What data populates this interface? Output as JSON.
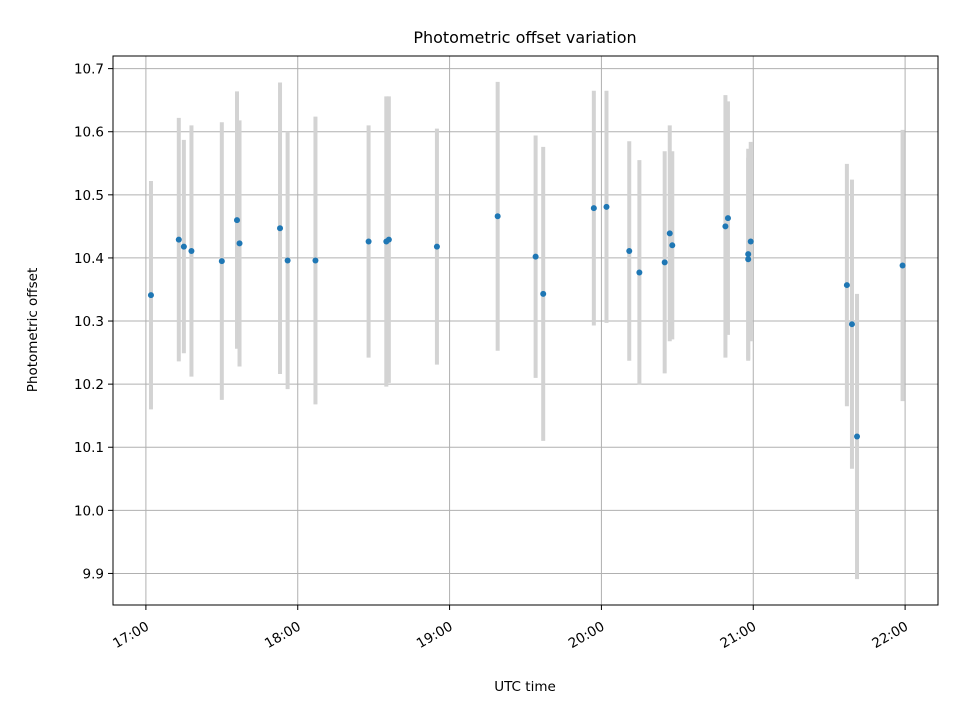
{
  "chart_data": {
    "type": "scatter",
    "title": "Photometric offset variation",
    "xlabel": "UTC time",
    "ylabel": "Photometric offset",
    "x_tick_labels": [
      "17:00",
      "18:00",
      "19:00",
      "20:00",
      "21:00",
      "22:00"
    ],
    "x_ticks": [
      "17:00",
      "18:00",
      "19:00",
      "20:00",
      "21:00",
      "22:00"
    ],
    "xlim": [
      "16:47",
      "22:13"
    ],
    "y_ticks": [
      9.9,
      10.0,
      10.1,
      10.2,
      10.3,
      10.4,
      10.5,
      10.6,
      10.7
    ],
    "y_tick_labels": [
      "9.9",
      "10.0",
      "10.1",
      "10.2",
      "10.3",
      "10.4",
      "10.5",
      "10.6",
      "10.7"
    ],
    "ylim": [
      9.85,
      10.72
    ],
    "grid": true,
    "point_color": "#1f77b4",
    "errorbar_color": "#d3d3d3",
    "points": [
      {
        "t": "17:02",
        "y": 10.341,
        "err": 0.181
      },
      {
        "t": "17:13",
        "y": 10.429,
        "err": 0.193
      },
      {
        "t": "17:15",
        "y": 10.418,
        "err": 0.169
      },
      {
        "t": "17:18",
        "y": 10.411,
        "err": 0.199
      },
      {
        "t": "17:30",
        "y": 10.395,
        "err": 0.22
      },
      {
        "t": "17:36",
        "y": 10.46,
        "err": 0.204
      },
      {
        "t": "17:37",
        "y": 10.423,
        "err": 0.195
      },
      {
        "t": "17:53",
        "y": 10.447,
        "err": 0.231
      },
      {
        "t": "17:56",
        "y": 10.396,
        "err": 0.204
      },
      {
        "t": "18:07",
        "y": 10.396,
        "err": 0.228
      },
      {
        "t": "18:28",
        "y": 10.426,
        "err": 0.184
      },
      {
        "t": "18:35",
        "y": 10.426,
        "err": 0.23
      },
      {
        "t": "18:36",
        "y": 10.429,
        "err": 0.227
      },
      {
        "t": "18:55",
        "y": 10.418,
        "err": 0.187
      },
      {
        "t": "19:19",
        "y": 10.466,
        "err": 0.213
      },
      {
        "t": "19:34",
        "y": 10.402,
        "err": 0.192
      },
      {
        "t": "19:37",
        "y": 10.343,
        "err": 0.233
      },
      {
        "t": "19:57",
        "y": 10.479,
        "err": 0.186
      },
      {
        "t": "20:02",
        "y": 10.481,
        "err": 0.184
      },
      {
        "t": "20:11",
        "y": 10.411,
        "err": 0.174
      },
      {
        "t": "20:15",
        "y": 10.377,
        "err": 0.178
      },
      {
        "t": "20:25",
        "y": 10.393,
        "err": 0.176
      },
      {
        "t": "20:27",
        "y": 10.439,
        "err": 0.171
      },
      {
        "t": "20:28",
        "y": 10.42,
        "err": 0.149
      },
      {
        "t": "20:49",
        "y": 10.45,
        "err": 0.208
      },
      {
        "t": "20:50",
        "y": 10.463,
        "err": 0.185
      },
      {
        "t": "20:58",
        "y": 10.406,
        "err": 0.167
      },
      {
        "t": "20:58",
        "y": 10.398,
        "err": 0.161
      },
      {
        "t": "20:59",
        "y": 10.426,
        "err": 0.158
      },
      {
        "t": "21:37",
        "y": 10.357,
        "err": 0.192
      },
      {
        "t": "21:39",
        "y": 10.295,
        "err": 0.229
      },
      {
        "t": "21:41",
        "y": 10.117,
        "err": 0.226
      },
      {
        "t": "21:59",
        "y": 10.388,
        "err": 0.215
      }
    ]
  }
}
